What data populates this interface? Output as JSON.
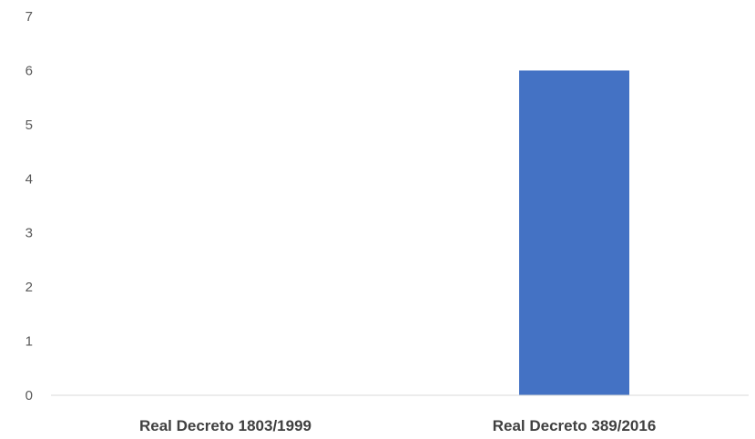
{
  "chart_data": {
    "type": "bar",
    "title": "",
    "xlabel": "",
    "ylabel": "",
    "categories": [
      "Real Decreto 1803/1999",
      "Real Decreto 389/2016"
    ],
    "values": [
      0,
      6
    ],
    "ylim": [
      0,
      7
    ],
    "yticks": [
      "0",
      "1",
      "2",
      "3",
      "4",
      "5",
      "6",
      "7"
    ],
    "grid": false,
    "legend": "none",
    "bar_color": "#4472c4",
    "axis_color": "#d9d9d9"
  }
}
